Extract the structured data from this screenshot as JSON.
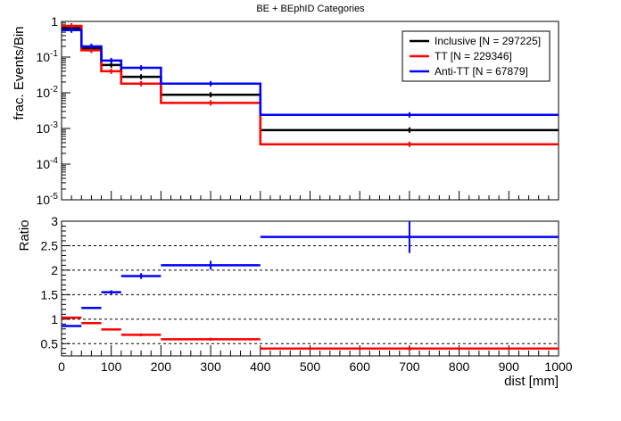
{
  "chart_data": [
    {
      "type": "line",
      "panel": "top",
      "title": "BE + BEphID Categories",
      "xlabel": "",
      "ylabel": "frac. Events/Bin",
      "xlim": [
        0,
        1000
      ],
      "ylim": [
        1e-05,
        1
      ],
      "yscale": "log",
      "y_tick_labels": [
        "1",
        "10^-1",
        "10^-2",
        "10^-3",
        "10^-4",
        "10^-5"
      ],
      "x_bin_edges": [
        0,
        40,
        80,
        120,
        200,
        400,
        1000
      ],
      "legend_position": "top-right",
      "series": [
        {
          "name": "Inclusive [N = 297225]",
          "color": "#000000",
          "values": [
            0.65,
            0.175,
            0.06,
            0.028,
            0.0088,
            0.0009
          ]
        },
        {
          "name": "TT [N = 229346]",
          "color": "#ff0000",
          "values": [
            0.75,
            0.155,
            0.04,
            0.018,
            0.0052,
            0.00036
          ]
        },
        {
          "name": "Anti-TT [N = 67879]",
          "color": "#0000ff",
          "values": [
            0.57,
            0.2,
            0.08,
            0.05,
            0.018,
            0.0024
          ]
        }
      ]
    },
    {
      "type": "scatter",
      "panel": "bottom",
      "xlabel": "dist [mm]",
      "ylabel": "Ratio",
      "xlim": [
        0,
        1000
      ],
      "ylim": [
        0.25,
        3
      ],
      "x_ticks": [
        0,
        100,
        200,
        300,
        400,
        500,
        600,
        700,
        800,
        900,
        1000
      ],
      "y_ticks": [
        0.5,
        1,
        1.5,
        2,
        2.5,
        3
      ],
      "dashed_gridlines": [
        0.5,
        1,
        1.5,
        2,
        2.5
      ],
      "x_bin_edges": [
        0,
        40,
        80,
        120,
        200,
        400,
        1000
      ],
      "series": [
        {
          "color": "#ff0000",
          "values": [
            1.03,
            0.92,
            0.79,
            0.68,
            0.59,
            0.4
          ],
          "errors": [
            0.01,
            0.01,
            0.02,
            0.03,
            0.03,
            0.04
          ]
        },
        {
          "color": "#0000ff",
          "values": [
            0.86,
            1.23,
            1.55,
            1.88,
            2.1,
            2.68
          ],
          "errors": [
            0.01,
            0.02,
            0.04,
            0.06,
            0.09,
            0.33
          ]
        }
      ]
    }
  ]
}
